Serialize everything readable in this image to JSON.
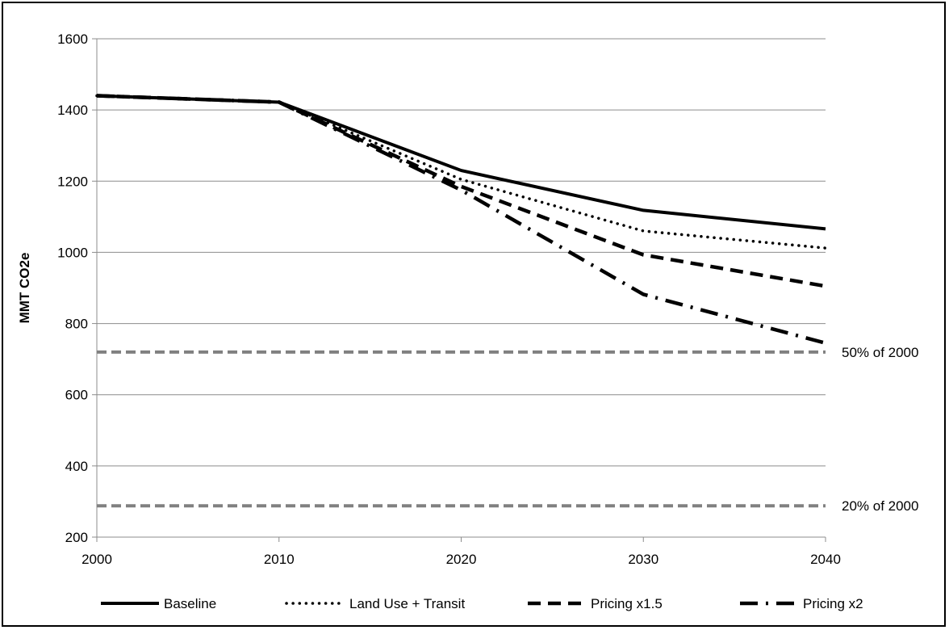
{
  "chart_data": {
    "type": "line",
    "ylabel": "MMT CO2e",
    "x": [
      2000,
      2010,
      2020,
      2030,
      2040
    ],
    "xlim": [
      2000,
      2040
    ],
    "ylim": [
      200,
      1600
    ],
    "xticks": [
      "2000",
      "2010",
      "2020",
      "2030",
      "2040"
    ],
    "yticks": [
      "200",
      "400",
      "600",
      "800",
      "1000",
      "1200",
      "1400",
      "1600"
    ],
    "grid": "horizontal",
    "legend_position": "bottom",
    "series": [
      {
        "name": "Baseline",
        "style": "solid",
        "x": [
          2000,
          2010,
          2020,
          2030,
          2040
        ],
        "values": [
          1440,
          1422,
          1230,
          1118,
          1066
        ]
      },
      {
        "name": "Land Use + Transit",
        "style": "dotted",
        "x": [
          2000,
          2010,
          2020,
          2030,
          2040
        ],
        "values": [
          1440,
          1422,
          1205,
          1060,
          1012
        ]
      },
      {
        "name": "Pricing x1.5",
        "style": "dashed",
        "x": [
          2000,
          2010,
          2020,
          2030,
          2040
        ],
        "values": [
          1440,
          1422,
          1185,
          993,
          905
        ]
      },
      {
        "name": "Pricing x2",
        "style": "dash-dot",
        "x": [
          2000,
          2010,
          2020,
          2030,
          2040
        ],
        "values": [
          1440,
          1422,
          1175,
          882,
          745
        ]
      }
    ],
    "reference_lines": [
      {
        "label": "50% of 2000",
        "value": 720,
        "color": "#808080"
      },
      {
        "label": "20% of 2000",
        "value": 288,
        "color": "#808080"
      }
    ],
    "colors": {
      "series": "#000000",
      "reference": "#808080",
      "grid": "#8c8c8c"
    }
  }
}
